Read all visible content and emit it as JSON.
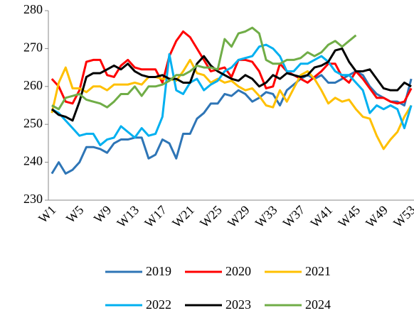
{
  "chart_data": {
    "type": "line",
    "categories": [
      "W1",
      null,
      null,
      null,
      "W5",
      null,
      null,
      null,
      "W9",
      null,
      null,
      null,
      "W13",
      null,
      null,
      null,
      "W17",
      null,
      null,
      null,
      "W21",
      null,
      null,
      null,
      "W25",
      null,
      null,
      null,
      "W29",
      null,
      null,
      null,
      "W33",
      null,
      null,
      null,
      "W37",
      null,
      null,
      null,
      "W41",
      null,
      null,
      null,
      "W45",
      null,
      null,
      null,
      "W49",
      null,
      null,
      null,
      "W53"
    ],
    "ylim": [
      230,
      280
    ],
    "yticks": [
      230,
      240,
      250,
      260,
      270,
      280
    ],
    "legend": "bottom",
    "series": [
      {
        "name": "2019",
        "color": "#2e75b6",
        "values": [
          237,
          240,
          237,
          238,
          240,
          244,
          244,
          243.5,
          242.5,
          245,
          246,
          246,
          246.5,
          246.5,
          241,
          242,
          246,
          245,
          241,
          247.5,
          247.5,
          251.5,
          253,
          255.5,
          255.5,
          258,
          257.5,
          259,
          258,
          256,
          257,
          258.5,
          258,
          255,
          259,
          260.5,
          262,
          263,
          262,
          263,
          261,
          261,
          262,
          263,
          264,
          263,
          260,
          258,
          257,
          256,
          256,
          255,
          262
        ]
      },
      {
        "name": "2020",
        "color": "#ff0000",
        "values": [
          262,
          260,
          256,
          255.5,
          259,
          266.5,
          267,
          267,
          263,
          262.5,
          265.5,
          267,
          265,
          264.5,
          264.5,
          264.5,
          261,
          268,
          272,
          274.5,
          273,
          270,
          267,
          264,
          264.5,
          265,
          262.5,
          267,
          267,
          266.5,
          264,
          259.5,
          260,
          266,
          264,
          263,
          262,
          261,
          262.5,
          264,
          266,
          266,
          262.5,
          261,
          264,
          262,
          259.5,
          257,
          257,
          256,
          255.5,
          256,
          259.5
        ]
      },
      {
        "name": "2021",
        "color": "#ffc000",
        "values": [
          253,
          261,
          265,
          259.5,
          259.5,
          258.5,
          260,
          260,
          259,
          260.5,
          260.5,
          260.5,
          261,
          260.5,
          262.5,
          262.5,
          262,
          262,
          261.5,
          264,
          267,
          263.5,
          263,
          261,
          262,
          261,
          261.5,
          260,
          259,
          259.5,
          257.5,
          255,
          254.5,
          259,
          256,
          259.5,
          263,
          264,
          262,
          259,
          255.5,
          257,
          256,
          256.5,
          254,
          252,
          251.5,
          247,
          243.5,
          246,
          248,
          252,
          255
        ]
      },
      {
        "name": "2022",
        "color": "#00b0f0",
        "values": [
          254,
          253,
          251,
          249,
          247,
          247.5,
          247.5,
          244.5,
          246,
          246.5,
          249.5,
          248,
          246.5,
          249,
          247,
          247.5,
          252,
          268.5,
          259,
          258,
          261,
          262,
          259,
          260.5,
          261.5,
          264,
          265,
          267,
          267.5,
          268,
          270.5,
          271,
          270,
          268,
          264,
          264,
          266,
          266,
          267,
          268,
          266.5,
          264,
          263,
          263,
          261,
          259,
          253,
          255,
          254,
          255,
          254,
          249,
          255
        ]
      },
      {
        "name": "2023",
        "color": "#000000",
        "values": [
          254,
          252.5,
          252,
          251,
          256,
          262.5,
          263.5,
          263.5,
          264.5,
          265.5,
          264.5,
          266,
          264,
          263,
          262.5,
          262.5,
          263,
          262,
          262,
          261,
          261,
          266,
          268,
          265.5,
          264,
          263,
          262,
          261.5,
          263,
          262,
          260,
          261,
          263,
          262,
          263.5,
          263,
          262.5,
          263,
          265,
          265.5,
          266.5,
          269.5,
          270,
          266.5,
          264,
          264,
          264.5,
          262,
          259.5,
          259,
          259,
          261,
          260
        ]
      },
      {
        "name": "2024",
        "color": "#70ad47",
        "values": [
          255,
          254,
          257,
          257.5,
          258,
          256.5,
          256,
          255.5,
          254.5,
          256,
          258,
          258,
          260,
          257.5,
          260,
          260,
          260.5,
          261.5,
          263,
          263,
          264,
          265.5,
          265,
          265,
          264.5,
          272.5,
          270.5,
          274,
          274.5,
          275.5,
          274,
          267,
          266,
          266,
          267,
          267,
          267.5,
          269,
          268,
          269,
          271,
          272,
          270.5,
          272,
          273.5,
          null,
          null,
          null,
          null,
          null,
          null,
          null,
          null
        ]
      }
    ]
  }
}
